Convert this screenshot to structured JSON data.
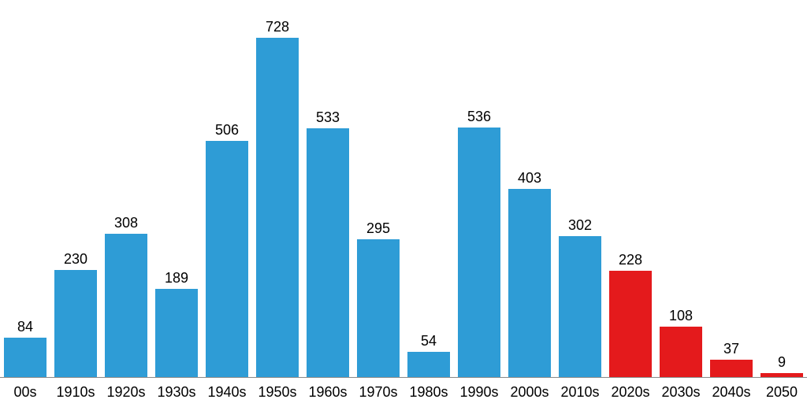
{
  "chart": {
    "type": "bar",
    "background_color": "#ffffff",
    "axis_color": "#888888",
    "ymax": 760,
    "bar_width_pct": 84,
    "value_label_fontsize": 18,
    "value_label_color": "#000000",
    "x_label_fontsize": 18,
    "x_label_color": "#000000",
    "colors": {
      "historical": "#2e9cd6",
      "projected": "#e41a1c"
    },
    "bars": [
      {
        "category": "00s",
        "value": 84,
        "label": "84",
        "color_key": "historical",
        "partial": true
      },
      {
        "category": "1910s",
        "value": 230,
        "label": "230",
        "color_key": "historical"
      },
      {
        "category": "1920s",
        "value": 308,
        "label": "308",
        "color_key": "historical"
      },
      {
        "category": "1930s",
        "value": 189,
        "label": "189",
        "color_key": "historical"
      },
      {
        "category": "1940s",
        "value": 506,
        "label": "506",
        "color_key": "historical"
      },
      {
        "category": "1950s",
        "value": 728,
        "label": "728",
        "color_key": "historical"
      },
      {
        "category": "1960s",
        "value": 533,
        "label": "533",
        "color_key": "historical"
      },
      {
        "category": "1970s",
        "value": 295,
        "label": "295",
        "color_key": "historical"
      },
      {
        "category": "1980s",
        "value": 54,
        "label": "54",
        "color_key": "historical"
      },
      {
        "category": "1990s",
        "value": 536,
        "label": "536",
        "color_key": "historical"
      },
      {
        "category": "2000s",
        "value": 403,
        "label": "403",
        "color_key": "historical"
      },
      {
        "category": "2010s",
        "value": 302,
        "label": "302",
        "color_key": "historical"
      },
      {
        "category": "2020s",
        "value": 228,
        "label": "228",
        "color_key": "projected"
      },
      {
        "category": "2030s",
        "value": 108,
        "label": "108",
        "color_key": "projected"
      },
      {
        "category": "2040s",
        "value": 37,
        "label": "37",
        "color_key": "projected"
      },
      {
        "category": "2050",
        "value": 9,
        "label": "9",
        "color_key": "projected",
        "partial": true
      }
    ]
  }
}
